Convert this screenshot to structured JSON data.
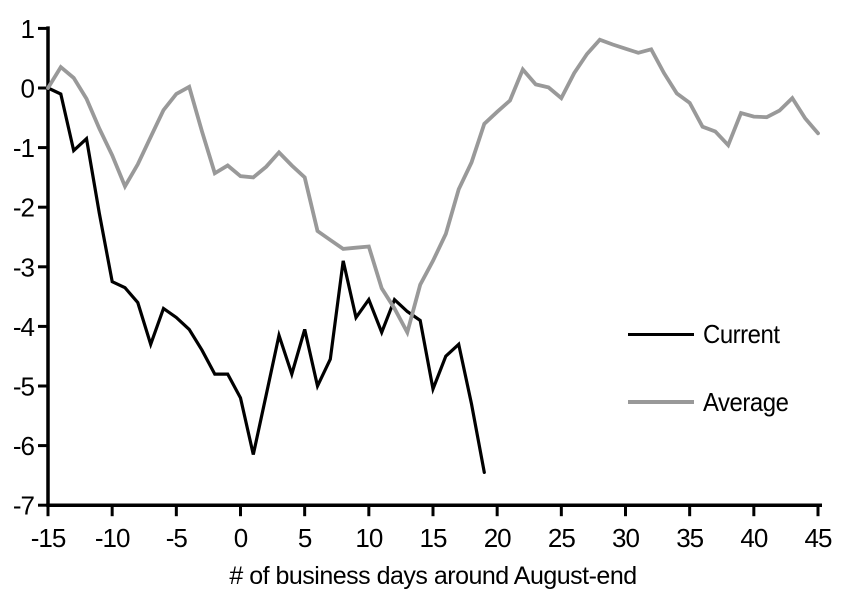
{
  "chart_data": {
    "type": "line",
    "title": "",
    "xlabel": "# of business days around August-end",
    "ylabel": "",
    "xlim": [
      -15,
      45
    ],
    "ylim": [
      -7,
      1
    ],
    "xticks": [
      -15,
      -10,
      -5,
      0,
      5,
      10,
      15,
      20,
      25,
      30,
      35,
      40,
      45
    ],
    "yticks": [
      1,
      0,
      -1,
      -2,
      -3,
      -4,
      -5,
      -6,
      -7
    ],
    "grid": false,
    "legend_position": "middle-right",
    "axis_color": "#000000",
    "background_color": "#ffffff",
    "series": [
      {
        "name": "Current",
        "color": "#000000",
        "x_start": -15,
        "values": [
          0,
          -0.1,
          -1.05,
          -0.85,
          -2.1,
          -3.25,
          -3.35,
          -3.6,
          -4.3,
          -3.7,
          -3.85,
          -4.05,
          -4.4,
          -4.8,
          -4.8,
          -5.2,
          -6.15,
          -5.15,
          -4.15,
          -4.8,
          -4.05,
          -5.0,
          -4.55,
          -2.9,
          -3.85,
          -3.55,
          -4.1,
          -3.55,
          -3.75,
          -3.9,
          -5.05,
          -4.5,
          -4.3,
          -5.3,
          -6.45
        ]
      },
      {
        "name": "Average",
        "color": "#999999",
        "x_start": -15,
        "values": [
          0,
          0.35,
          0.17,
          -0.18,
          -0.68,
          -1.13,
          -1.65,
          -1.28,
          -0.82,
          -0.37,
          -0.1,
          0.02,
          -0.73,
          -1.43,
          -1.3,
          -1.48,
          -1.5,
          -1.32,
          -1.08,
          -1.3,
          -1.5,
          -2.4,
          -2.55,
          -2.7,
          -2.68,
          -2.66,
          -3.36,
          -3.7,
          -4.1,
          -3.3,
          -2.9,
          -2.45,
          -1.7,
          -1.25,
          -0.6,
          -0.4,
          -0.21,
          0.31,
          0.06,
          0.01,
          -0.17,
          0.25,
          0.57,
          0.81,
          0.73,
          0.66,
          0.59,
          0.65,
          0.25,
          -0.09,
          -0.25,
          -0.65,
          -0.73,
          -0.96,
          -0.42,
          -0.48,
          -0.49,
          -0.38,
          -0.17,
          -0.51,
          -0.76
        ]
      }
    ]
  }
}
